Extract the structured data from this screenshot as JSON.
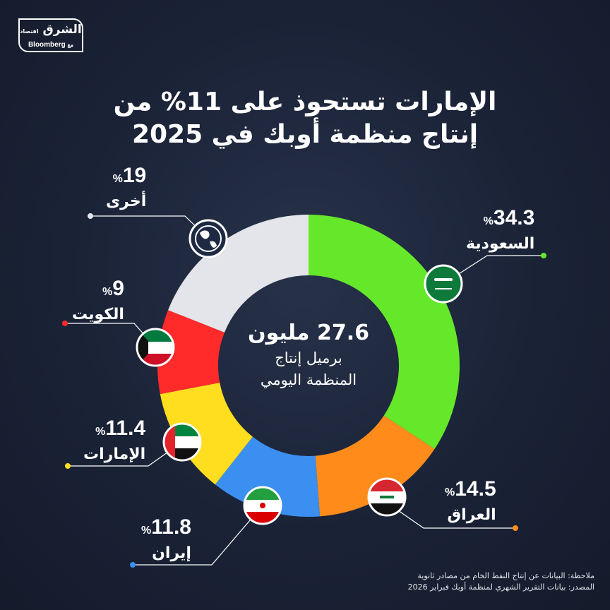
{
  "logo": {
    "name_ar": "الشرق",
    "sub_ar": "اقتصاد",
    "partner_ar": "مع",
    "partner": "Bloomberg"
  },
  "title": {
    "line1": "الإمارات تستحوذ على 11% من",
    "line2": "إنتاج منظمة أوبك في 2025"
  },
  "center": {
    "value": "27.6 مليون",
    "desc_line1": "برميل إنتاج",
    "desc_line2": "المنظمة اليومي"
  },
  "chart_data": {
    "type": "donut",
    "unit": "%",
    "categories": [
      "السعودية",
      "العراق",
      "إيران",
      "الإمارات",
      "الكويت",
      "أخرى"
    ],
    "values": [
      34.3,
      14.5,
      11.8,
      11.4,
      9,
      19
    ],
    "value_labels": [
      "34.3",
      "14.5",
      "11.8",
      "11.4",
      "9",
      "19"
    ],
    "colors": [
      "#66e82a",
      "#ff8c1a",
      "#3b8ff0",
      "#ffdd1f",
      "#ff2a2a",
      "#e3e5ea"
    ],
    "flags": [
      "flag-saudi-arabia-icon",
      "flag-iraq-icon",
      "flag-iran-icon",
      "flag-uae-icon",
      "flag-kuwait-icon",
      "globe-icon"
    ]
  },
  "note": {
    "line1": "ملاحظة: البيانات عن إنتاج النفط الخام من مصادر ثانوية",
    "line2": "المصدر: بيانات التقرير الشهري لمنظمة أوبك فبراير 2026"
  }
}
